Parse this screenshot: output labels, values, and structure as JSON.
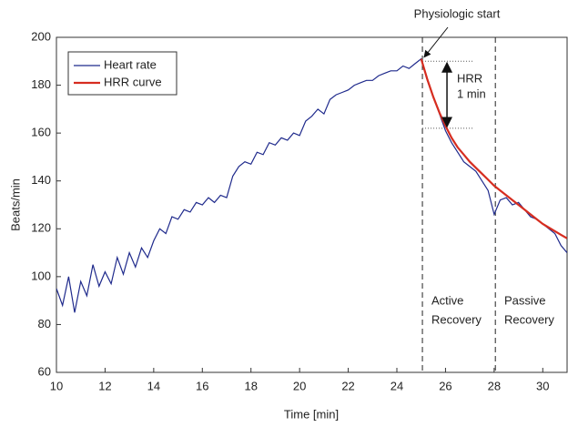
{
  "chart_data": {
    "type": "line",
    "x_label": "Time [min]",
    "y_label": "Beats/min",
    "x": [
      10,
      10.25,
      10.5,
      10.75,
      11,
      11.25,
      11.5,
      11.75,
      12,
      12.25,
      12.5,
      12.75,
      13,
      13.25,
      13.5,
      13.75,
      14,
      14.25,
      14.5,
      14.75,
      15,
      15.25,
      15.5,
      15.75,
      16,
      16.25,
      16.5,
      16.75,
      17,
      17.25,
      17.5,
      17.75,
      18,
      18.25,
      18.5,
      18.75,
      19,
      19.25,
      19.5,
      19.75,
      20,
      20.25,
      20.5,
      20.75,
      21,
      21.25,
      21.5,
      21.75,
      22,
      22.25,
      22.5,
      22.75,
      23,
      23.25,
      23.5,
      23.75,
      24,
      24.25,
      24.5,
      24.75,
      25,
      25.25,
      25.5,
      25.75,
      26,
      26.25,
      26.5,
      26.75,
      27,
      27.25,
      27.5,
      27.75,
      28,
      28.25,
      28.5,
      28.75,
      29,
      29.25,
      29.5,
      29.75,
      30,
      30.25,
      30.5,
      30.75,
      31
    ],
    "series": [
      {
        "name": "Heart rate",
        "color": "#1f2a8c",
        "values": [
          95,
          88,
          100,
          85,
          98,
          92,
          105,
          96,
          102,
          97,
          108,
          101,
          110,
          104,
          112,
          108,
          115,
          120,
          118,
          125,
          124,
          128,
          127,
          131,
          130,
          133,
          131,
          134,
          133,
          142,
          146,
          148,
          147,
          152,
          151,
          156,
          155,
          158,
          157,
          160,
          159,
          165,
          167,
          170,
          168,
          174,
          176,
          177,
          178,
          180,
          181,
          182,
          182,
          184,
          185,
          186,
          186,
          188,
          187,
          189,
          191,
          182,
          175,
          168,
          161,
          156,
          152,
          148,
          146,
          144,
          140,
          136,
          126,
          132,
          133,
          130,
          131,
          128,
          125,
          124,
          122,
          120,
          118,
          113,
          110
        ]
      },
      {
        "name": "HRR curve",
        "color": "#d62d20",
        "values": [
          null,
          null,
          null,
          null,
          null,
          null,
          null,
          null,
          null,
          null,
          null,
          null,
          null,
          null,
          null,
          null,
          null,
          null,
          null,
          null,
          null,
          null,
          null,
          null,
          null,
          null,
          null,
          null,
          null,
          null,
          null,
          null,
          null,
          null,
          null,
          null,
          null,
          null,
          null,
          null,
          null,
          null,
          null,
          null,
          null,
          null,
          null,
          null,
          null,
          null,
          null,
          null,
          null,
          null,
          null,
          null,
          null,
          null,
          null,
          null,
          191,
          182.5,
          175,
          168.5,
          163,
          158,
          154,
          151,
          148,
          145.5,
          143,
          140.5,
          138,
          136,
          134,
          132,
          130,
          128,
          126,
          124,
          122,
          120.5,
          119,
          117.5,
          116
        ]
      }
    ],
    "xlim": [
      10,
      31
    ],
    "ylim": [
      60,
      200
    ],
    "xticks": [
      10,
      12,
      14,
      16,
      18,
      20,
      22,
      24,
      26,
      28,
      30
    ],
    "yticks": [
      60,
      80,
      100,
      120,
      140,
      160,
      180,
      200
    ],
    "vlines": [
      25.05,
      28.05
    ],
    "hrr_levels": [
      190,
      162
    ],
    "annotations": [
      "Physiologic start",
      "HRR",
      "1 min",
      "Active",
      "Recovery",
      "Passive",
      "Recovery"
    ],
    "legend": "upper left"
  }
}
